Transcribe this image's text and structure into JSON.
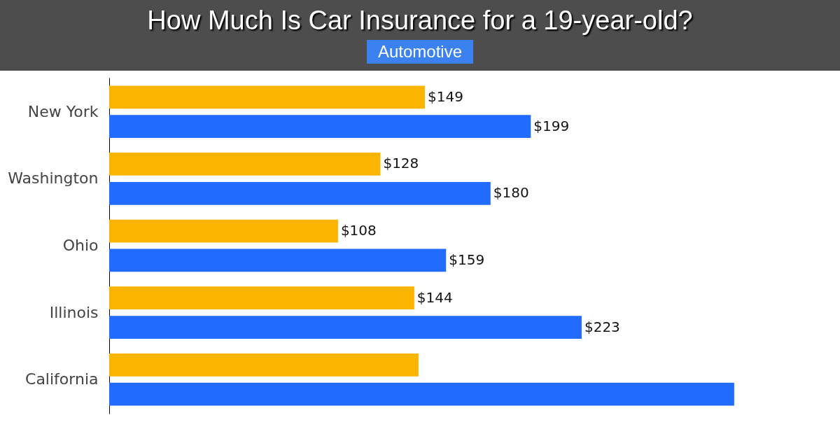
{
  "chart_data": {
    "type": "bar",
    "orientation": "horizontal",
    "title": "How Much Is Car Insurance for a 19-year-old?",
    "annotations": [
      "Automotive"
    ],
    "categories": [
      "New York",
      "Washington",
      "Ohio",
      "Illinois",
      "California"
    ],
    "series": [
      {
        "color": "#fbb500",
        "values": [
          149,
          128,
          108,
          144,
          146
        ],
        "value_labels": [
          "$149",
          "$128",
          "$108",
          "$144",
          null
        ]
      },
      {
        "color": "#216bff",
        "values": [
          199,
          180,
          159,
          223,
          295
        ],
        "value_labels": [
          "$199",
          "$180",
          "$159",
          "$223",
          null
        ]
      }
    ]
  }
}
